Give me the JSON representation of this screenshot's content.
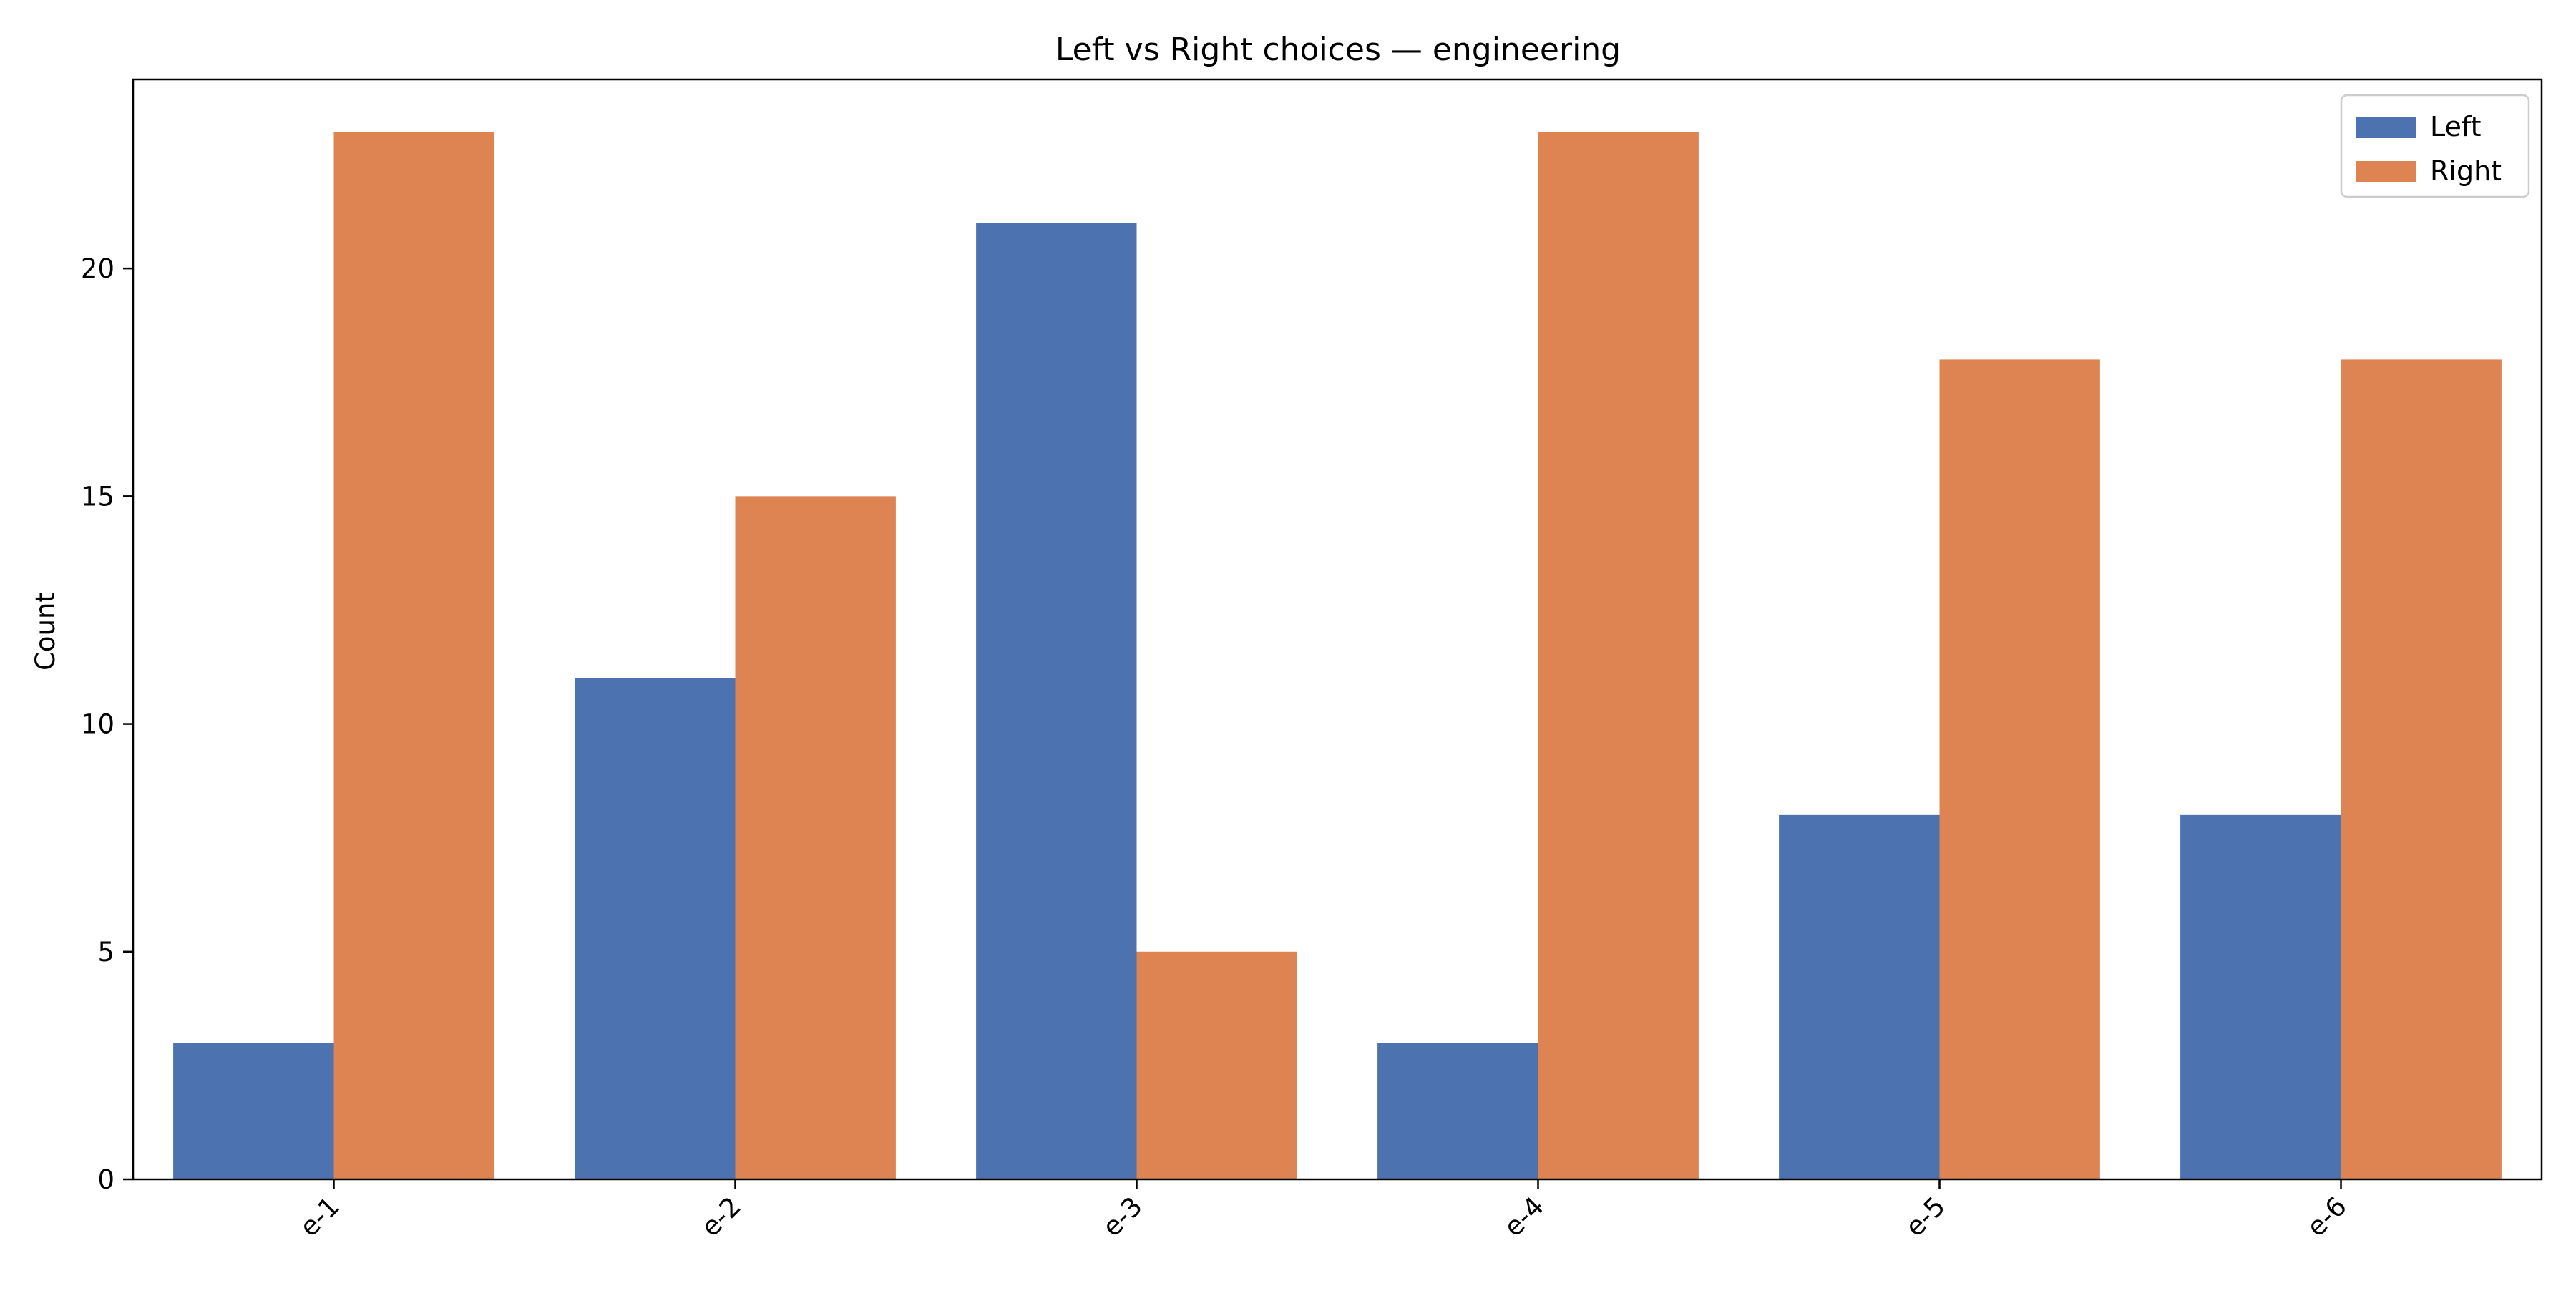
{
  "chart_data": {
    "type": "bar",
    "title": "Left vs Right choices — engineering",
    "xlabel": "",
    "ylabel": "Count",
    "categories": [
      "e-1",
      "e-2",
      "e-3",
      "e-4",
      "e-5",
      "e-6"
    ],
    "series": [
      {
        "name": "Left",
        "color": "#4c72b0",
        "values": [
          3,
          11,
          21,
          3,
          8,
          8
        ]
      },
      {
        "name": "Right",
        "color": "#dd8452",
        "values": [
          23,
          15,
          5,
          23,
          18,
          18
        ]
      }
    ],
    "ylim": [
      0,
      24.15
    ],
    "yticks": [
      0,
      5,
      10,
      15,
      20
    ],
    "grid": false,
    "legend_position": "top-right"
  }
}
